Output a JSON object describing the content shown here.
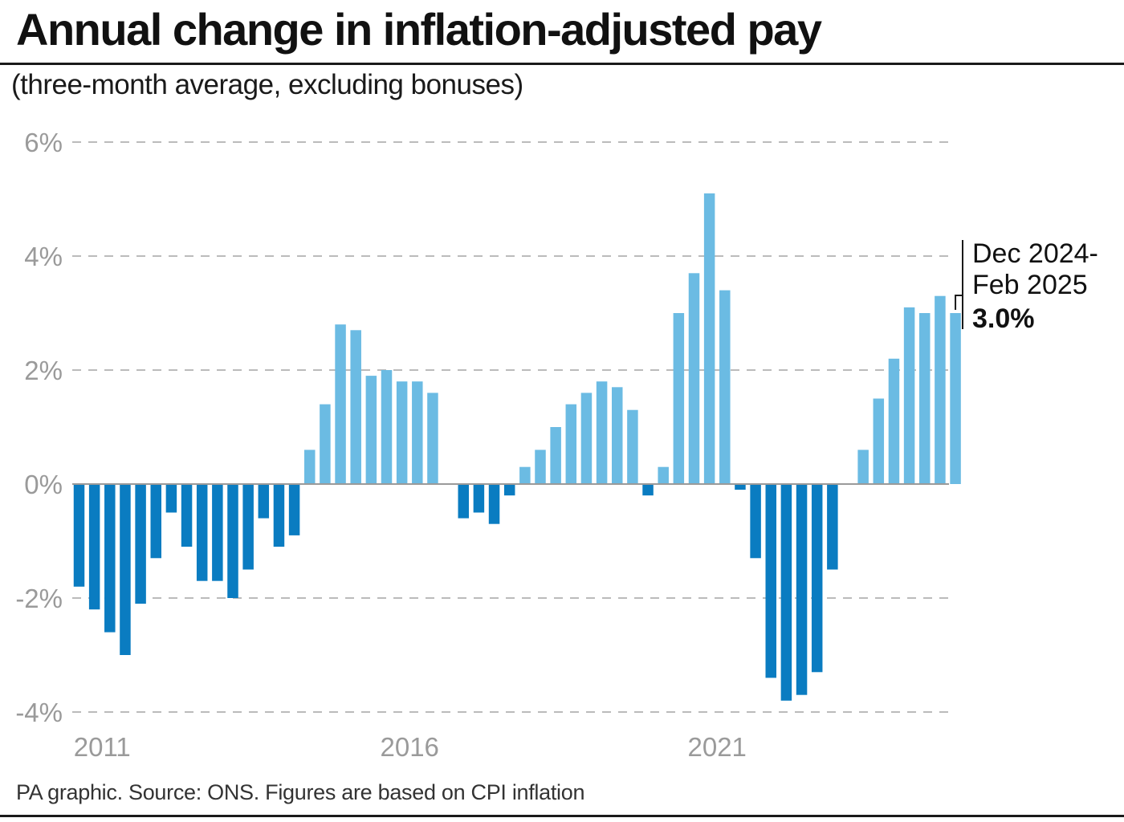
{
  "header": {
    "title": "Annual change in inflation-adjusted pay",
    "subtitle": "(three-month average, excluding bonuses)"
  },
  "footer": {
    "source": "PA graphic. Source: ONS. Figures are based on CPI inflation"
  },
  "annotation": {
    "line1": "Dec 2024-",
    "line2": "Feb 2025",
    "value": "3.0%"
  },
  "colors": {
    "positive": "#6bbbe3",
    "negative": "#0a7cc1",
    "grid": "#bbbbbb",
    "axis_label": "#9a9a9a",
    "zero_line": "#9a9a9a"
  },
  "chart_data": {
    "type": "bar",
    "ylim": [
      -4,
      6
    ],
    "yticks": [
      6,
      4,
      2,
      0,
      -2,
      -4
    ],
    "ytick_labels": [
      "6%",
      "4%",
      "2%",
      "0%",
      "-2%",
      "-4%"
    ],
    "grid": "horizontal dashed",
    "x_tick_labels": [
      {
        "label": "2011",
        "bar_index": 1.5
      },
      {
        "label": "2016",
        "bar_index": 21.5
      },
      {
        "label": "2021",
        "bar_index": 41.5
      }
    ],
    "values": [
      -1.8,
      -2.2,
      -2.6,
      -3.0,
      -2.1,
      -1.3,
      -0.5,
      -1.1,
      -1.7,
      -1.7,
      -2.0,
      -1.5,
      -0.6,
      -1.1,
      -0.9,
      0.6,
      1.4,
      2.8,
      2.7,
      1.9,
      2.0,
      1.8,
      1.8,
      1.6,
      0.0,
      -0.6,
      -0.5,
      -0.7,
      -0.2,
      0.3,
      0.6,
      1.0,
      1.4,
      1.6,
      1.8,
      1.7,
      1.3,
      -0.2,
      0.3,
      3.0,
      3.7,
      5.1,
      3.4,
      -0.1,
      -1.3,
      -3.4,
      -3.8,
      -3.7,
      -3.3,
      -1.5,
      0.0,
      0.6,
      1.5,
      2.2,
      3.1,
      3.0,
      3.3,
      3.0
    ]
  }
}
